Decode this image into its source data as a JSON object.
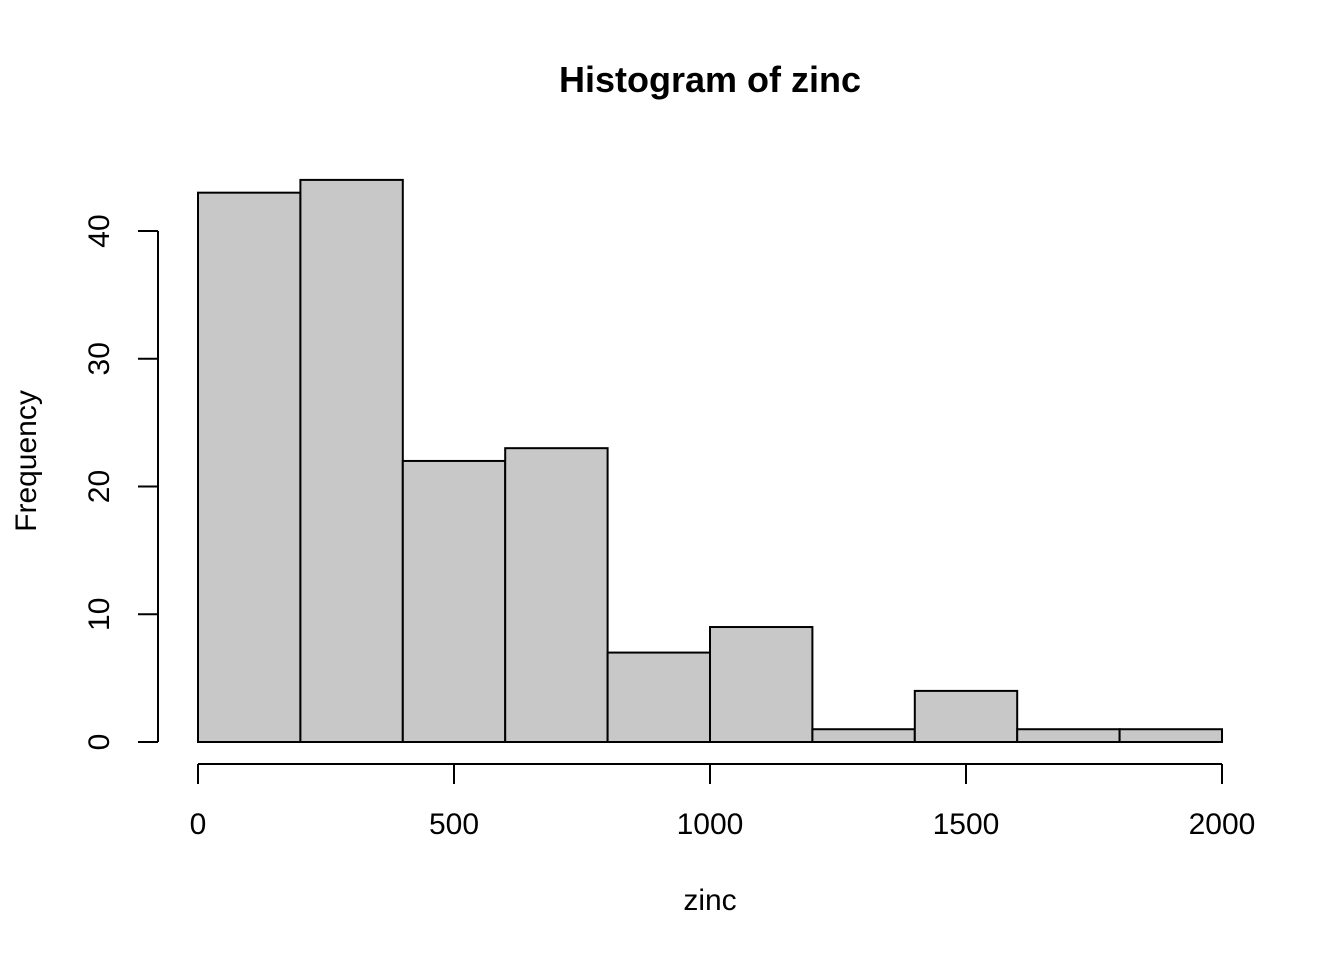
{
  "chart_data": {
    "type": "bar",
    "title": "Histogram of zinc",
    "xlabel": "zinc",
    "ylabel": "Frequency",
    "bins": [
      {
        "from": 0,
        "to": 200,
        "count": 43
      },
      {
        "from": 200,
        "to": 400,
        "count": 44
      },
      {
        "from": 400,
        "to": 600,
        "count": 22
      },
      {
        "from": 600,
        "to": 800,
        "count": 23
      },
      {
        "from": 800,
        "to": 1000,
        "count": 7
      },
      {
        "from": 1000,
        "to": 1200,
        "count": 9
      },
      {
        "from": 1200,
        "to": 1400,
        "count": 1
      },
      {
        "from": 1400,
        "to": 1600,
        "count": 4
      },
      {
        "from": 1600,
        "to": 1800,
        "count": 1
      },
      {
        "from": 1800,
        "to": 2000,
        "count": 1
      }
    ],
    "xlim": [
      0,
      2000
    ],
    "ylim": [
      0,
      44
    ],
    "x_ticks": [
      0,
      500,
      1000,
      1500,
      2000
    ],
    "x_tick_labels": [
      "0",
      "500",
      "1000",
      "1500",
      "2000"
    ],
    "y_ticks": [
      0,
      10,
      20,
      30,
      40
    ],
    "y_tick_labels": [
      "0",
      "10",
      "20",
      "30",
      "40"
    ],
    "grid": false,
    "legend": "none",
    "bar_color": "#c8c8c8",
    "edge_color": "#000000"
  }
}
